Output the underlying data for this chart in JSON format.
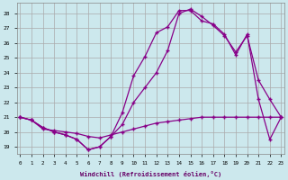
{
  "xlabel": "Windchill (Refroidissement éolien,°C)",
  "bg_color": "#cce8ed",
  "grid_color": "#aaaaaa",
  "line_color": "#880088",
  "x_ticks": [
    0,
    1,
    2,
    3,
    4,
    5,
    6,
    7,
    8,
    9,
    10,
    11,
    12,
    13,
    14,
    15,
    16,
    17,
    18,
    19,
    20,
    21,
    22,
    23
  ],
  "y_ticks": [
    19,
    20,
    21,
    22,
    23,
    24,
    25,
    26,
    27,
    28
  ],
  "xlim": [
    -0.3,
    23.3
  ],
  "ylim": [
    18.5,
    28.7
  ],
  "line1_x": [
    0,
    1,
    2,
    3,
    4,
    5,
    6,
    7,
    8,
    9,
    10,
    11,
    12,
    13,
    14,
    15,
    16,
    17,
    18,
    19,
    20,
    21,
    22,
    23
  ],
  "line1_y": [
    21.0,
    20.8,
    20.2,
    20.1,
    20.0,
    19.9,
    19.7,
    19.6,
    19.8,
    20.0,
    20.2,
    20.4,
    20.6,
    20.7,
    20.8,
    20.9,
    21.0,
    21.0,
    21.0,
    21.0,
    21.0,
    21.0,
    21.0,
    21.0
  ],
  "line2_x": [
    0,
    1,
    2,
    3,
    4,
    5,
    6,
    7,
    8,
    9,
    10,
    11,
    12,
    13,
    14,
    15,
    16,
    17,
    18,
    19,
    20,
    21,
    22,
    23
  ],
  "line2_y": [
    21.0,
    20.8,
    20.3,
    20.0,
    19.8,
    19.5,
    18.8,
    19.0,
    19.7,
    21.3,
    23.8,
    25.1,
    26.7,
    27.1,
    28.2,
    28.2,
    27.5,
    27.3,
    26.6,
    25.2,
    26.6,
    22.2,
    19.5,
    21.0
  ],
  "line3_x": [
    0,
    1,
    2,
    3,
    4,
    5,
    6,
    7,
    8,
    9,
    10,
    11,
    12,
    13,
    14,
    15,
    16,
    17,
    18,
    19,
    20,
    21,
    22,
    23
  ],
  "line3_y": [
    21.0,
    20.8,
    20.3,
    20.0,
    19.8,
    19.5,
    18.8,
    19.0,
    19.7,
    20.5,
    22.0,
    23.0,
    24.0,
    25.5,
    28.0,
    28.3,
    27.8,
    27.2,
    26.5,
    25.4,
    26.5,
    23.5,
    22.2,
    21.0
  ]
}
